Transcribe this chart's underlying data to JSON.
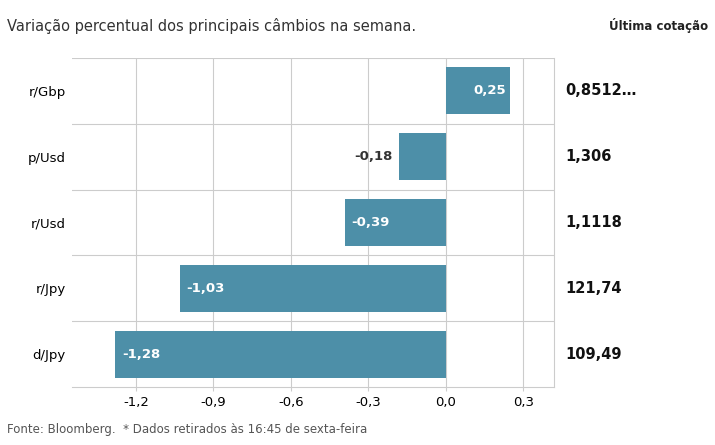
{
  "title": "Variação percentual dos principais câmbios na semana.",
  "categories": [
    "r/Gbp",
    "p/Usd",
    "r/Usd",
    "r/Jpy",
    "d/Jpy"
  ],
  "values": [
    0.25,
    -0.18,
    -0.39,
    -1.03,
    -1.28
  ],
  "last_quotes": [
    "0,8512…",
    "1,306",
    "1,1118",
    "121,74",
    "109,49"
  ],
  "bar_color": "#4d8fa8",
  "label_color_inside": "#ffffff",
  "label_color_outside": "#333333",
  "xlim": [
    -1.45,
    0.42
  ],
  "xticks": [
    -1.2,
    -0.9,
    -0.6,
    -0.3,
    0.0,
    0.3
  ],
  "xtick_labels": [
    "-1,2",
    "-0,9",
    "-0,6",
    "-0,3",
    "0,0",
    "0,3"
  ],
  "background_color": "#ffffff",
  "plot_background": "#ffffff",
  "grid_color": "#cccccc",
  "footer": "Fonte: Bloomberg.  * Dados retirados às 16:45 de sexta-feira",
  "ultima_cotacao_label": "Última cotаção",
  "title_fontsize": 10.5,
  "tick_fontsize": 9.5,
  "bar_label_fontsize": 9.5,
  "footer_fontsize": 8.5,
  "last_quote_fontsize": 10.5
}
